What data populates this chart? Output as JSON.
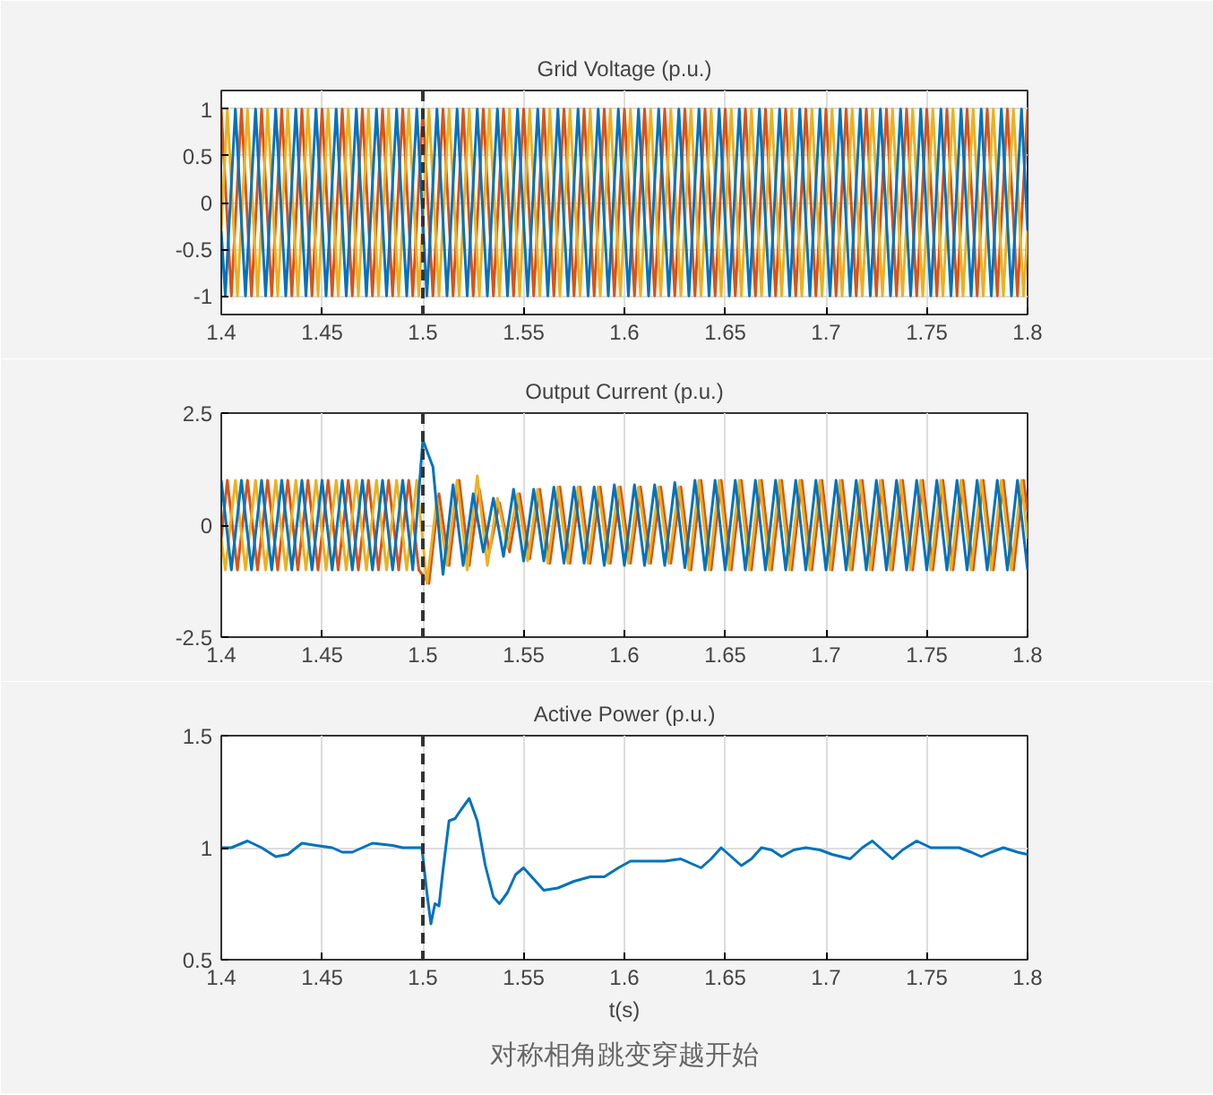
{
  "chart_data": [
    {
      "type": "line",
      "title": "Grid Voltage (p.u.)",
      "xlim": [
        1.4,
        1.8
      ],
      "ylim": [
        -1.2,
        1.2
      ],
      "xticks": [
        1.4,
        1.45,
        1.5,
        1.55,
        1.6,
        1.65,
        1.7,
        1.75,
        1.8
      ],
      "yticks": [
        -1,
        -0.5,
        0,
        0.5,
        1
      ],
      "grid": true,
      "ref_lines": [
        {
          "axis": "x",
          "value": 1.5,
          "color": "#333333",
          "line_style": "dashed"
        }
      ],
      "series": [
        {
          "color": "#d95319",
          "x": [
            1.4,
            1.405,
            1.41,
            1.415,
            1.42,
            1.425,
            1.43,
            1.435,
            1.44,
            1.445,
            1.45,
            1.455,
            1.46,
            1.465,
            1.47,
            1.475,
            1.48,
            1.485,
            1.49,
            1.495,
            1.5,
            1.505,
            1.51,
            1.515,
            1.52,
            1.525,
            1.53,
            1.535,
            1.54,
            1.545,
            1.55,
            1.555,
            1.56,
            1.565,
            1.57,
            1.575,
            1.58,
            1.585,
            1.59,
            1.595,
            1.6,
            1.605,
            1.61,
            1.615,
            1.62,
            1.625,
            1.63,
            1.635,
            1.64,
            1.645,
            1.65,
            1.655,
            1.66,
            1.665,
            1.67,
            1.675,
            1.68,
            1.685,
            1.69,
            1.695,
            1.7,
            1.705,
            1.71,
            1.715,
            1.72,
            1.725,
            1.73,
            1.735,
            1.74,
            1.745,
            1.75,
            1.755,
            1.76,
            1.765,
            1.77,
            1.775,
            1.78,
            1.785,
            1.79,
            1.795,
            1.8
          ],
          "values": [
            1,
            -1,
            1,
            -1,
            1,
            -1,
            1,
            -1,
            1,
            -1,
            1,
            -1,
            1,
            -1,
            1,
            -1,
            1,
            -1,
            1,
            -1,
            1,
            -1,
            1,
            -1,
            1,
            -1,
            1,
            -1,
            1,
            -1,
            1,
            -1,
            1,
            -1,
            1,
            -1,
            1,
            -1,
            1,
            -1,
            1,
            -1,
            1,
            -1,
            1,
            -1,
            1,
            -1,
            1,
            -1,
            1,
            -1,
            1,
            -1,
            1,
            -1,
            1,
            -1,
            1,
            -1,
            1,
            -1,
            1,
            -1,
            1,
            -1,
            1,
            -1,
            1,
            -1,
            1,
            -1,
            1,
            -1,
            1,
            -1,
            1,
            -1,
            1,
            -1,
            1
          ]
        },
        {
          "color": "#edb120",
          "x": [
            1.4,
            1.403,
            1.408,
            1.413,
            1.418,
            1.423,
            1.428,
            1.433,
            1.438,
            1.443,
            1.448,
            1.453,
            1.458,
            1.463,
            1.468,
            1.473,
            1.478,
            1.483,
            1.488,
            1.493,
            1.498,
            1.503,
            1.508,
            1.513,
            1.518,
            1.523,
            1.528,
            1.533,
            1.538,
            1.543,
            1.548,
            1.553,
            1.558,
            1.563,
            1.568,
            1.573,
            1.578,
            1.583,
            1.588,
            1.593,
            1.598,
            1.603,
            1.608,
            1.613,
            1.618,
            1.623,
            1.628,
            1.633,
            1.638,
            1.643,
            1.648,
            1.653,
            1.658,
            1.663,
            1.668,
            1.673,
            1.678,
            1.683,
            1.688,
            1.693,
            1.698,
            1.703,
            1.708,
            1.713,
            1.718,
            1.723,
            1.728,
            1.733,
            1.738,
            1.743,
            1.748,
            1.753,
            1.758,
            1.763,
            1.768,
            1.773,
            1.778,
            1.783,
            1.788,
            1.793,
            1.798,
            1.8
          ],
          "values": [
            -0.3,
            1,
            -1,
            1,
            -1,
            1,
            -1,
            1,
            -1,
            1,
            -1,
            1,
            -1,
            1,
            -1,
            1,
            -1,
            1,
            -1,
            1,
            -1,
            1,
            -1,
            1,
            -1,
            1,
            -1,
            1,
            -1,
            1,
            -1,
            1,
            -1,
            1,
            -1,
            1,
            -1,
            1,
            -1,
            1,
            -1,
            1,
            -1,
            1,
            -1,
            1,
            -1,
            1,
            -1,
            1,
            -1,
            1,
            -1,
            1,
            -1,
            1,
            -1,
            1,
            -1,
            1,
            -1,
            1,
            -1,
            1,
            -1,
            1,
            -1,
            1,
            -1,
            1,
            -1,
            1,
            -1,
            1,
            -1,
            1,
            -1,
            1,
            -1,
            1,
            -1,
            -0.3
          ]
        },
        {
          "color": "#0072bd",
          "x": [
            1.4,
            1.402,
            1.407,
            1.412,
            1.417,
            1.422,
            1.427,
            1.432,
            1.437,
            1.442,
            1.447,
            1.452,
            1.457,
            1.462,
            1.467,
            1.472,
            1.477,
            1.482,
            1.487,
            1.492,
            1.497,
            1.502,
            1.507,
            1.512,
            1.517,
            1.522,
            1.527,
            1.532,
            1.537,
            1.542,
            1.547,
            1.552,
            1.557,
            1.562,
            1.567,
            1.572,
            1.577,
            1.582,
            1.587,
            1.592,
            1.597,
            1.602,
            1.607,
            1.612,
            1.617,
            1.622,
            1.627,
            1.632,
            1.637,
            1.642,
            1.647,
            1.652,
            1.657,
            1.662,
            1.667,
            1.672,
            1.677,
            1.682,
            1.687,
            1.692,
            1.697,
            1.702,
            1.707,
            1.712,
            1.717,
            1.722,
            1.727,
            1.732,
            1.737,
            1.742,
            1.747,
            1.752,
            1.757,
            1.762,
            1.767,
            1.772,
            1.777,
            1.782,
            1.787,
            1.792,
            1.797,
            1.8
          ],
          "values": [
            -0.3,
            -1,
            1,
            -1,
            1,
            -1,
            1,
            -1,
            1,
            -1,
            1,
            -1,
            1,
            -1,
            1,
            -1,
            1,
            -1,
            1,
            -1,
            1,
            -1,
            1,
            -1,
            1,
            -1,
            1,
            -1,
            1,
            -1,
            1,
            -1,
            1,
            -1,
            1,
            -1,
            1,
            -1,
            1,
            -1,
            1,
            -1,
            1,
            -1,
            1,
            -1,
            1,
            -1,
            1,
            -1,
            1,
            -1,
            1,
            -1,
            1,
            -1,
            1,
            -1,
            1,
            -1,
            1,
            -1,
            1,
            -1,
            1,
            -1,
            1,
            -1,
            1,
            -1,
            1,
            -1,
            1,
            -1,
            1,
            -1,
            1,
            -1,
            1,
            -1,
            1,
            -0.3
          ]
        }
      ]
    },
    {
      "type": "line",
      "title": "Output Current (p.u.)",
      "xlim": [
        1.4,
        1.8
      ],
      "ylim": [
        -2.5,
        2.5
      ],
      "xticks": [
        1.4,
        1.45,
        1.5,
        1.55,
        1.6,
        1.65,
        1.7,
        1.75,
        1.8
      ],
      "yticks": [
        -2.5,
        0,
        2.5
      ],
      "grid": true,
      "ref_lines": [
        {
          "axis": "x",
          "value": 1.5,
          "color": "#333333",
          "line_style": "dashed"
        }
      ],
      "series": [
        {
          "color": "#d95319",
          "x": [
            1.4,
            1.403,
            1.408,
            1.413,
            1.418,
            1.423,
            1.428,
            1.433,
            1.438,
            1.443,
            1.448,
            1.453,
            1.458,
            1.463,
            1.468,
            1.473,
            1.478,
            1.483,
            1.488,
            1.493,
            1.498,
            1.503,
            1.508,
            1.513,
            1.518,
            1.523,
            1.528,
            1.533,
            1.538,
            1.543,
            1.548,
            1.553,
            1.558,
            1.563,
            1.568,
            1.573,
            1.578,
            1.583,
            1.588,
            1.593,
            1.598,
            1.603,
            1.608,
            1.613,
            1.618,
            1.623,
            1.628,
            1.633,
            1.638,
            1.643,
            1.648,
            1.653,
            1.658,
            1.663,
            1.668,
            1.673,
            1.678,
            1.683,
            1.688,
            1.693,
            1.698,
            1.703,
            1.708,
            1.713,
            1.718,
            1.723,
            1.728,
            1.733,
            1.738,
            1.743,
            1.748,
            1.753,
            1.758,
            1.763,
            1.768,
            1.773,
            1.778,
            1.783,
            1.788,
            1.793,
            1.798,
            1.8
          ],
          "values": [
            -0.3,
            1,
            -1,
            1,
            -1,
            1,
            -1,
            1,
            -1,
            1,
            -1,
            1,
            -1,
            1,
            -1,
            1,
            -1,
            1,
            -1,
            1,
            -1,
            -1.3,
            0.7,
            -0.9,
            1,
            -0.9,
            0.8,
            -0.6,
            0.5,
            -0.6,
            0.7,
            -0.75,
            0.8,
            -0.85,
            0.85,
            -0.85,
            0.85,
            -0.85,
            0.85,
            -0.85,
            0.85,
            -0.85,
            0.85,
            -0.85,
            0.85,
            -0.85,
            0.85,
            -1,
            1,
            -1,
            1,
            -1,
            1,
            -1,
            1,
            -1,
            1,
            -1,
            1,
            -1,
            1,
            -1,
            1,
            -1,
            1,
            -1,
            1,
            -1,
            1,
            -1,
            1,
            -1,
            1,
            -1,
            1,
            -1,
            1,
            -1,
            1,
            -1,
            1,
            0.3
          ]
        },
        {
          "color": "#edb120",
          "x": [
            1.4,
            1.402,
            1.407,
            1.412,
            1.417,
            1.422,
            1.427,
            1.432,
            1.437,
            1.442,
            1.447,
            1.452,
            1.457,
            1.462,
            1.467,
            1.472,
            1.477,
            1.482,
            1.487,
            1.492,
            1.497,
            1.502,
            1.507,
            1.512,
            1.517,
            1.522,
            1.527,
            1.532,
            1.537,
            1.542,
            1.547,
            1.552,
            1.557,
            1.562,
            1.567,
            1.572,
            1.577,
            1.582,
            1.587,
            1.592,
            1.597,
            1.602,
            1.607,
            1.612,
            1.617,
            1.622,
            1.627,
            1.632,
            1.637,
            1.642,
            1.647,
            1.652,
            1.657,
            1.662,
            1.667,
            1.672,
            1.677,
            1.682,
            1.687,
            1.692,
            1.697,
            1.702,
            1.707,
            1.712,
            1.717,
            1.722,
            1.727,
            1.732,
            1.737,
            1.742,
            1.747,
            1.752,
            1.757,
            1.762,
            1.767,
            1.772,
            1.777,
            1.782,
            1.787,
            1.792,
            1.797,
            1.8
          ],
          "values": [
            -0.3,
            -1,
            1,
            -1,
            1,
            -1,
            1,
            -1,
            1,
            -1,
            1,
            -1,
            1,
            -1,
            1,
            -1,
            1,
            -1,
            1,
            -1,
            1,
            -1.3,
            0.6,
            -0.9,
            1,
            -1,
            1.1,
            -0.9,
            0.6,
            -0.5,
            0.7,
            -0.8,
            0.8,
            -0.85,
            0.85,
            -0.85,
            0.85,
            -0.85,
            0.85,
            -0.85,
            0.85,
            -0.85,
            0.85,
            -0.85,
            0.85,
            -0.85,
            0.85,
            -1,
            1,
            -1,
            1,
            -1,
            1,
            -1,
            1,
            -1,
            1,
            -1,
            1,
            -1,
            1,
            -1,
            1,
            -1,
            1,
            -1,
            1,
            -1,
            1,
            -1,
            1,
            -1,
            1,
            -1,
            1,
            -1,
            1,
            -1,
            1,
            -1,
            1,
            -0.3
          ]
        },
        {
          "color": "#0072bd",
          "x": [
            1.4,
            1.405,
            1.41,
            1.415,
            1.42,
            1.425,
            1.43,
            1.435,
            1.44,
            1.445,
            1.45,
            1.455,
            1.46,
            1.465,
            1.47,
            1.475,
            1.48,
            1.485,
            1.49,
            1.495,
            1.5,
            1.505,
            1.51,
            1.515,
            1.52,
            1.525,
            1.53,
            1.535,
            1.54,
            1.545,
            1.55,
            1.555,
            1.56,
            1.565,
            1.57,
            1.575,
            1.58,
            1.585,
            1.59,
            1.595,
            1.6,
            1.605,
            1.61,
            1.615,
            1.62,
            1.625,
            1.63,
            1.635,
            1.64,
            1.645,
            1.65,
            1.655,
            1.66,
            1.665,
            1.67,
            1.675,
            1.68,
            1.685,
            1.69,
            1.695,
            1.7,
            1.705,
            1.71,
            1.715,
            1.72,
            1.725,
            1.73,
            1.735,
            1.74,
            1.745,
            1.75,
            1.755,
            1.76,
            1.765,
            1.77,
            1.775,
            1.78,
            1.785,
            1.79,
            1.795,
            1.8
          ],
          "values": [
            1,
            -1,
            1,
            -1,
            1,
            -1,
            1,
            -1,
            1,
            -1,
            1,
            -1,
            1,
            -1,
            1,
            -1,
            1,
            -1,
            1,
            -1,
            1.9,
            1.3,
            -1.1,
            0.9,
            -0.9,
            0.7,
            -0.6,
            0.6,
            -0.7,
            0.8,
            -0.8,
            0.8,
            -0.8,
            0.85,
            -0.85,
            0.85,
            -0.85,
            0.85,
            -0.9,
            0.9,
            -0.9,
            0.9,
            -0.9,
            0.9,
            -0.9,
            0.95,
            -0.95,
            1,
            -1,
            1,
            -1,
            1,
            -1,
            1,
            -1,
            1,
            -1,
            1,
            -1,
            1,
            -1,
            1,
            -1,
            1,
            -1,
            1,
            -1,
            1,
            -1,
            1,
            -1,
            1,
            -1,
            1,
            -1,
            1,
            -1,
            1,
            -1,
            1,
            -1
          ]
        }
      ]
    },
    {
      "type": "line",
      "title": "Active Power (p.u.)",
      "xlabel": "t(s)",
      "annotations": [
        "对称相角跳变穿越开始"
      ],
      "xlim": [
        1.4,
        1.8
      ],
      "ylim": [
        0.5,
        1.5
      ],
      "xticks": [
        1.4,
        1.45,
        1.5,
        1.55,
        1.6,
        1.65,
        1.7,
        1.75,
        1.8
      ],
      "yticks": [
        0.5,
        1,
        1.5
      ],
      "grid": true,
      "ref_lines": [
        {
          "axis": "x",
          "value": 1.5,
          "color": "#333333",
          "line_style": "dashed"
        }
      ],
      "series": [
        {
          "color": "#0072bd",
          "x": [
            1.4,
            1.405,
            1.413,
            1.42,
            1.427,
            1.433,
            1.44,
            1.447,
            1.455,
            1.46,
            1.465,
            1.475,
            1.485,
            1.49,
            1.4995,
            1.502,
            1.504,
            1.506,
            1.508,
            1.51,
            1.513,
            1.516,
            1.519,
            1.523,
            1.527,
            1.531,
            1.535,
            1.538,
            1.542,
            1.546,
            1.55,
            1.555,
            1.56,
            1.567,
            1.575,
            1.583,
            1.59,
            1.597,
            1.603,
            1.61,
            1.62,
            1.628,
            1.633,
            1.638,
            1.643,
            1.648,
            1.653,
            1.658,
            1.663,
            1.668,
            1.673,
            1.678,
            1.684,
            1.69,
            1.697,
            1.703,
            1.712,
            1.718,
            1.723,
            1.728,
            1.733,
            1.738,
            1.745,
            1.752,
            1.76,
            1.766,
            1.772,
            1.777,
            1.782,
            1.788,
            1.795,
            1.8
          ],
          "values": [
            1.0,
            1.0,
            1.03,
            1.0,
            0.96,
            0.97,
            1.02,
            1.01,
            1.0,
            0.98,
            0.98,
            1.02,
            1.01,
            1.0,
            1.0,
            0.8,
            0.66,
            0.75,
            0.74,
            0.9,
            1.12,
            1.13,
            1.17,
            1.22,
            1.12,
            0.92,
            0.78,
            0.75,
            0.8,
            0.88,
            0.91,
            0.86,
            0.81,
            0.82,
            0.85,
            0.87,
            0.87,
            0.91,
            0.94,
            0.94,
            0.94,
            0.95,
            0.93,
            0.91,
            0.95,
            1.0,
            0.96,
            0.92,
            0.95,
            1.0,
            0.99,
            0.96,
            0.99,
            1.0,
            0.99,
            0.97,
            0.95,
            1.0,
            1.03,
            0.99,
            0.95,
            0.99,
            1.03,
            1.0,
            1.0,
            1.0,
            0.98,
            0.96,
            0.98,
            1.0,
            0.98,
            0.97
          ]
        }
      ]
    }
  ]
}
